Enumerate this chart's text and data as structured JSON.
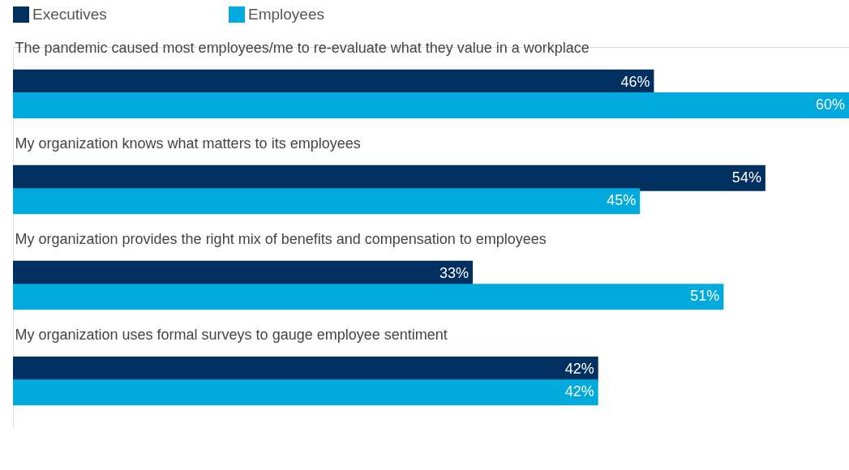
{
  "chart_data": {
    "type": "bar",
    "orientation": "horizontal",
    "legend": "top left",
    "categories": [
      "The pandemic caused most employees/me to re-evaluate what they value in a workplace",
      "My organization knows what matters to its employees",
      "My organization provides the right mix of benefits and compensation to employees",
      "My organization uses formal surveys to gauge employee sentiment"
    ],
    "series": [
      {
        "name": "Executives",
        "color": "#00305f",
        "values": [
          46,
          54,
          33,
          42
        ],
        "value_labels": [
          "46%",
          "54%",
          "33%",
          "42%"
        ]
      },
      {
        "name": "Employees",
        "color": "#00aadc",
        "values": [
          60,
          45,
          51,
          42
        ],
        "value_labels": [
          "60%",
          "45%",
          "51%",
          "42%"
        ]
      }
    ]
  }
}
